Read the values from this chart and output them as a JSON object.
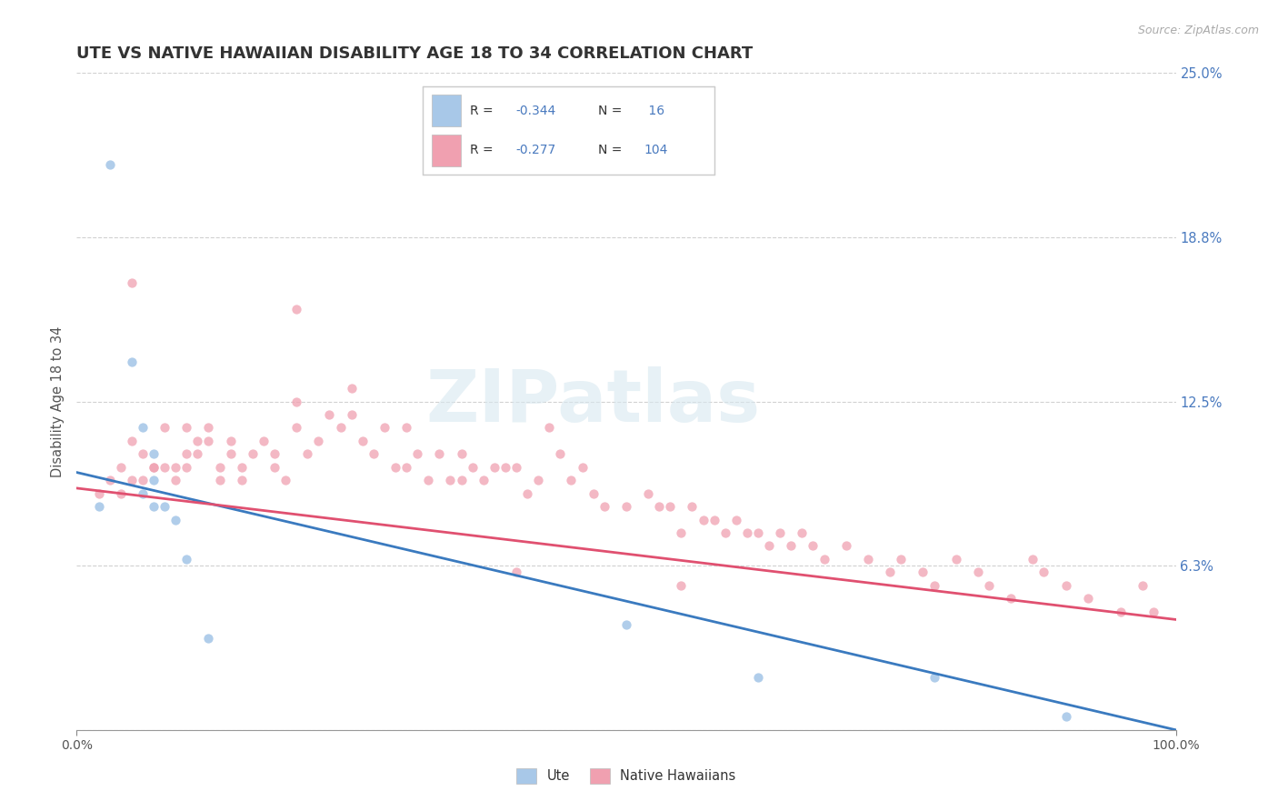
{
  "title": "UTE VS NATIVE HAWAIIAN DISABILITY AGE 18 TO 34 CORRELATION CHART",
  "source_text": "Source: ZipAtlas.com",
  "xlabel": "",
  "ylabel": "Disability Age 18 to 34",
  "xlim": [
    0,
    1.0
  ],
  "ylim": [
    0,
    0.25
  ],
  "yticks": [
    0.0,
    0.0625,
    0.125,
    0.1875,
    0.25
  ],
  "ytick_labels": [
    "",
    "6.3%",
    "12.5%",
    "18.8%",
    "25.0%"
  ],
  "xtick_labels": [
    "0.0%",
    "100.0%"
  ],
  "xtick_positions": [
    0.0,
    1.0
  ],
  "grid_color": "#cccccc",
  "background_color": "#ffffff",
  "ute_scatter_color": "#a8c8e8",
  "nh_scatter_color": "#f0a0b0",
  "ute_line_color": "#3a7abf",
  "nh_line_color": "#e05070",
  "watermark_color": "#d8e8f0",
  "watermark_text": "ZIPatlas",
  "legend_ute_r": "-0.344",
  "legend_ute_n": "16",
  "legend_nh_r": "-0.277",
  "legend_nh_n": "104",
  "value_color": "#4a7abf",
  "text_color": "#555555",
  "ute_x": [
    0.02,
    0.03,
    0.05,
    0.06,
    0.06,
    0.07,
    0.07,
    0.07,
    0.08,
    0.09,
    0.1,
    0.12,
    0.5,
    0.62,
    0.78,
    0.9
  ],
  "ute_y": [
    0.085,
    0.215,
    0.14,
    0.115,
    0.09,
    0.105,
    0.095,
    0.085,
    0.085,
    0.08,
    0.065,
    0.035,
    0.04,
    0.02,
    0.02,
    0.005
  ],
  "nh_x": [
    0.02,
    0.03,
    0.04,
    0.04,
    0.05,
    0.05,
    0.06,
    0.06,
    0.07,
    0.07,
    0.08,
    0.08,
    0.09,
    0.09,
    0.1,
    0.1,
    0.1,
    0.11,
    0.11,
    0.12,
    0.12,
    0.13,
    0.13,
    0.14,
    0.14,
    0.15,
    0.15,
    0.16,
    0.17,
    0.18,
    0.18,
    0.19,
    0.2,
    0.2,
    0.21,
    0.22,
    0.23,
    0.24,
    0.25,
    0.25,
    0.26,
    0.27,
    0.28,
    0.29,
    0.3,
    0.3,
    0.31,
    0.32,
    0.33,
    0.34,
    0.35,
    0.35,
    0.36,
    0.37,
    0.38,
    0.39,
    0.4,
    0.41,
    0.42,
    0.43,
    0.44,
    0.45,
    0.46,
    0.47,
    0.48,
    0.5,
    0.52,
    0.53,
    0.54,
    0.55,
    0.56,
    0.57,
    0.58,
    0.59,
    0.6,
    0.61,
    0.62,
    0.63,
    0.64,
    0.65,
    0.66,
    0.67,
    0.68,
    0.7,
    0.72,
    0.74,
    0.75,
    0.77,
    0.78,
    0.8,
    0.82,
    0.83,
    0.85,
    0.87,
    0.88,
    0.9,
    0.92,
    0.95,
    0.97,
    0.98,
    0.05,
    0.2,
    0.4,
    0.55
  ],
  "nh_y": [
    0.09,
    0.095,
    0.1,
    0.09,
    0.11,
    0.095,
    0.105,
    0.095,
    0.1,
    0.1,
    0.115,
    0.1,
    0.1,
    0.095,
    0.115,
    0.105,
    0.1,
    0.11,
    0.105,
    0.115,
    0.11,
    0.1,
    0.095,
    0.11,
    0.105,
    0.1,
    0.095,
    0.105,
    0.11,
    0.105,
    0.1,
    0.095,
    0.125,
    0.115,
    0.105,
    0.11,
    0.12,
    0.115,
    0.13,
    0.12,
    0.11,
    0.105,
    0.115,
    0.1,
    0.115,
    0.1,
    0.105,
    0.095,
    0.105,
    0.095,
    0.105,
    0.095,
    0.1,
    0.095,
    0.1,
    0.1,
    0.1,
    0.09,
    0.095,
    0.115,
    0.105,
    0.095,
    0.1,
    0.09,
    0.085,
    0.085,
    0.09,
    0.085,
    0.085,
    0.075,
    0.085,
    0.08,
    0.08,
    0.075,
    0.08,
    0.075,
    0.075,
    0.07,
    0.075,
    0.07,
    0.075,
    0.07,
    0.065,
    0.07,
    0.065,
    0.06,
    0.065,
    0.06,
    0.055,
    0.065,
    0.06,
    0.055,
    0.05,
    0.065,
    0.06,
    0.055,
    0.05,
    0.045,
    0.055,
    0.045,
    0.17,
    0.16,
    0.06,
    0.055
  ]
}
